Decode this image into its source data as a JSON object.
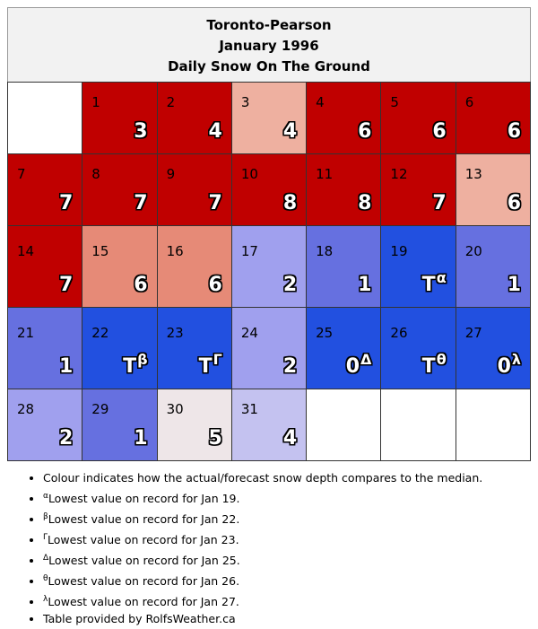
{
  "header": {
    "station": "Toronto-Pearson",
    "period": "January 1996",
    "subtitle": "Daily Snow On The Ground"
  },
  "colors": {
    "red": "#c00000",
    "pink": "#eeb0a0",
    "salmon": "#e68a77",
    "blue": "#2250e0",
    "medblue": "#6670e0",
    "lavender": "#a0a0ee",
    "lightlav": "#c4c2f0",
    "mist": "#eee6e8",
    "white": "#ffffff"
  },
  "weeks": [
    [
      {
        "day": "",
        "value": "",
        "sup": "",
        "color": "white",
        "medal": false
      },
      {
        "day": "1",
        "value": "3",
        "sup": "",
        "color": "red",
        "medal": false
      },
      {
        "day": "2",
        "value": "4",
        "sup": "",
        "color": "red",
        "medal": false
      },
      {
        "day": "3",
        "value": "4",
        "sup": "",
        "color": "pink",
        "medal": false
      },
      {
        "day": "4",
        "value": "6",
        "sup": "",
        "color": "red",
        "medal": false
      },
      {
        "day": "5",
        "value": "6",
        "sup": "",
        "color": "red",
        "medal": false
      },
      {
        "day": "6",
        "value": "6",
        "sup": "",
        "color": "red",
        "medal": false
      }
    ],
    [
      {
        "day": "7",
        "value": "7",
        "sup": "",
        "color": "red",
        "medal": false
      },
      {
        "day": "8",
        "value": "7",
        "sup": "",
        "color": "red",
        "medal": false
      },
      {
        "day": "9",
        "value": "7",
        "sup": "",
        "color": "red",
        "medal": false
      },
      {
        "day": "10",
        "value": "8",
        "sup": "",
        "color": "red",
        "medal": false
      },
      {
        "day": "11",
        "value": "8",
        "sup": "",
        "color": "red",
        "medal": false
      },
      {
        "day": "12",
        "value": "7",
        "sup": "",
        "color": "red",
        "medal": false
      },
      {
        "day": "13",
        "value": "6",
        "sup": "",
        "color": "pink",
        "medal": false
      }
    ],
    [
      {
        "day": "14",
        "value": "7",
        "sup": "",
        "color": "red",
        "medal": false
      },
      {
        "day": "15",
        "value": "6",
        "sup": "",
        "color": "salmon",
        "medal": false
      },
      {
        "day": "16",
        "value": "6",
        "sup": "",
        "color": "salmon",
        "medal": false
      },
      {
        "day": "17",
        "value": "2",
        "sup": "",
        "color": "lavender",
        "medal": false
      },
      {
        "day": "18",
        "value": "1",
        "sup": "",
        "color": "medblue",
        "medal": false
      },
      {
        "day": "19",
        "value": "T",
        "sup": "α",
        "color": "blue",
        "medal": true
      },
      {
        "day": "20",
        "value": "1",
        "sup": "",
        "color": "medblue",
        "medal": false
      }
    ],
    [
      {
        "day": "21",
        "value": "1",
        "sup": "",
        "color": "medblue",
        "medal": false
      },
      {
        "day": "22",
        "value": "T",
        "sup": "β",
        "color": "blue",
        "medal": true
      },
      {
        "day": "23",
        "value": "T",
        "sup": "Γ",
        "color": "blue",
        "medal": true
      },
      {
        "day": "24",
        "value": "2",
        "sup": "",
        "color": "lavender",
        "medal": false
      },
      {
        "day": "25",
        "value": "0",
        "sup": "Δ",
        "color": "blue",
        "medal": true
      },
      {
        "day": "26",
        "value": "T",
        "sup": "θ",
        "color": "blue",
        "medal": true
      },
      {
        "day": "27",
        "value": "0",
        "sup": "λ",
        "color": "blue",
        "medal": true
      }
    ],
    [
      {
        "day": "28",
        "value": "2",
        "sup": "",
        "color": "lavender",
        "medal": false
      },
      {
        "day": "29",
        "value": "1",
        "sup": "",
        "color": "medblue",
        "medal": false
      },
      {
        "day": "30",
        "value": "5",
        "sup": "",
        "color": "mist",
        "medal": false
      },
      {
        "day": "31",
        "value": "4",
        "sup": "",
        "color": "lightlav",
        "medal": false
      },
      {
        "day": "",
        "value": "",
        "sup": "",
        "color": "white",
        "medal": false
      },
      {
        "day": "",
        "value": "",
        "sup": "",
        "color": "white",
        "medal": false
      },
      {
        "day": "",
        "value": "",
        "sup": "",
        "color": "white",
        "medal": false
      }
    ]
  ],
  "notes": [
    {
      "sup": "",
      "text": "Colour indicates how the actual/forecast snow depth compares to the median."
    },
    {
      "sup": "α",
      "text": "Lowest value on record for Jan 19."
    },
    {
      "sup": "β",
      "text": "Lowest value on record for Jan 22."
    },
    {
      "sup": "Γ",
      "text": "Lowest value on record for Jan 23."
    },
    {
      "sup": "Δ",
      "text": "Lowest value on record for Jan 25."
    },
    {
      "sup": "θ",
      "text": "Lowest value on record for Jan 26."
    },
    {
      "sup": "λ",
      "text": "Lowest value on record for Jan 27."
    },
    {
      "sup": "",
      "text": "Table provided by RolfsWeather.ca"
    }
  ]
}
